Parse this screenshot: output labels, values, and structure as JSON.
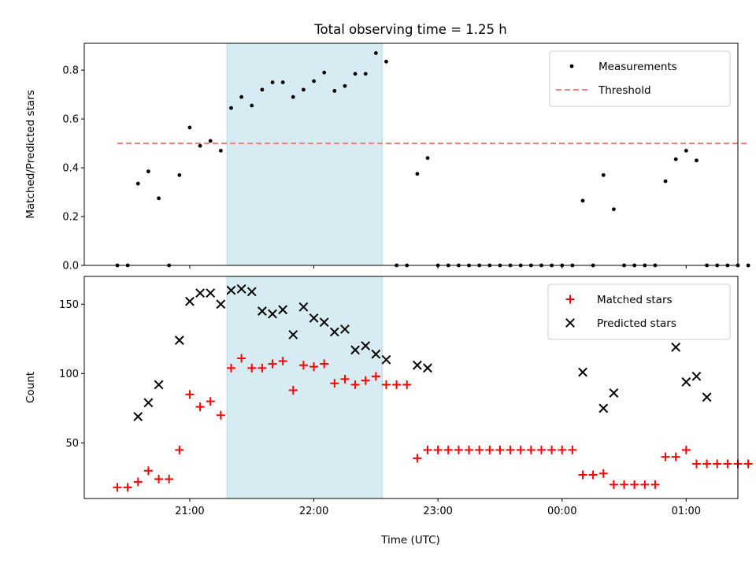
{
  "title": "Total observing time = 1.25 h",
  "xlabel": "Time (UTC)",
  "x_tick_labels": [
    "21:00",
    "22:00",
    "23:00",
    "00:00",
    "01:00"
  ],
  "colors": {
    "measurements": "#000000",
    "threshold": "#ff7f7f",
    "matched": "#ff0000",
    "predicted": "#000000",
    "observing_window": "#add8e6"
  },
  "chart_data": [
    {
      "type": "scatter",
      "ylabel": "Matched/Predicted stars",
      "ylim": [
        0,
        0.91
      ],
      "y_ticks": [
        "0.0",
        "0.2",
        "0.4",
        "0.6",
        "0.8"
      ],
      "x_range": [
        "20:09",
        "01:25"
      ],
      "shaded_interval": [
        "21:18",
        "22:33"
      ],
      "legend_position": "upper right",
      "threshold": {
        "name": "Threshold",
        "value": 0.5,
        "x": [
          "20:25",
          "01:30"
        ],
        "style": "dashed"
      },
      "series": [
        {
          "name": "Measurements",
          "marker": "dot",
          "x": [
            "20:25",
            "20:30",
            "20:35",
            "20:40",
            "20:45",
            "20:50",
            "20:55",
            "21:00",
            "21:05",
            "21:10",
            "21:15",
            "21:20",
            "21:25",
            "21:30",
            "21:35",
            "21:40",
            "21:45",
            "21:50",
            "21:55",
            "22:00",
            "22:05",
            "22:10",
            "22:15",
            "22:20",
            "22:25",
            "22:30",
            "22:35",
            "22:40",
            "22:45",
            "22:50",
            "22:55",
            "23:00",
            "23:05",
            "23:10",
            "23:15",
            "23:20",
            "23:25",
            "23:30",
            "23:35",
            "23:40",
            "23:45",
            "23:50",
            "23:55",
            "00:00",
            "00:05",
            "00:10",
            "00:15",
            "00:20",
            "00:25",
            "00:30",
            "00:35",
            "00:40",
            "00:45",
            "00:50",
            "00:55",
            "01:00",
            "01:05",
            "01:10",
            "01:15",
            "01:20",
            "01:25",
            "01:30"
          ],
          "values": [
            0,
            0,
            0.335,
            0.385,
            0.275,
            0,
            0.37,
            0.565,
            0.49,
            0.51,
            0.47,
            0.645,
            0.69,
            0.655,
            0.72,
            0.75,
            0.75,
            0.69,
            0.72,
            0.755,
            0.79,
            0.715,
            0.735,
            0.785,
            0.785,
            0.87,
            0.835,
            0,
            0,
            0.375,
            0.44,
            0,
            0,
            0,
            0,
            0,
            0,
            0,
            0,
            0,
            0,
            0,
            0,
            0,
            0,
            0.265,
            0,
            0.37,
            0.23,
            0,
            0,
            0,
            0,
            0.345,
            0.435,
            0.47,
            0.43,
            0,
            0,
            0,
            0,
            0
          ]
        }
      ]
    },
    {
      "type": "scatter",
      "ylabel": "Count",
      "ylim": [
        10,
        170
      ],
      "y_ticks": [
        "50",
        "100",
        "150"
      ],
      "x_range": [
        "20:09",
        "01:25"
      ],
      "shaded_interval": [
        "21:18",
        "22:33"
      ],
      "legend_position": "upper right",
      "series": [
        {
          "name": "Matched stars",
          "marker": "plus",
          "x": [
            "20:25",
            "20:30",
            "20:35",
            "20:40",
            "20:45",
            "20:50",
            "20:55",
            "21:00",
            "21:05",
            "21:10",
            "21:15",
            "21:20",
            "21:25",
            "21:30",
            "21:35",
            "21:40",
            "21:45",
            "21:50",
            "21:55",
            "22:00",
            "22:05",
            "22:10",
            "22:15",
            "22:20",
            "22:25",
            "22:30",
            "22:35",
            "22:40",
            "22:45",
            "22:50",
            "22:55",
            "23:00",
            "23:05",
            "23:10",
            "23:15",
            "23:20",
            "23:25",
            "23:30",
            "23:35",
            "23:40",
            "23:45",
            "23:50",
            "23:55",
            "00:00",
            "00:05",
            "00:10",
            "00:15",
            "00:20",
            "00:25",
            "00:30",
            "00:35",
            "00:40",
            "00:45",
            "00:50",
            "00:55",
            "01:00",
            "01:05",
            "01:10",
            "01:15",
            "01:20",
            "01:25",
            "01:30"
          ],
          "values": [
            18,
            18,
            22,
            30,
            24,
            24,
            45,
            85,
            76,
            80,
            70,
            104,
            111,
            104,
            104,
            107,
            109,
            88,
            106,
            105,
            107,
            93,
            96,
            92,
            95,
            98,
            92,
            92,
            92,
            39,
            45,
            45,
            45,
            45,
            45,
            45,
            45,
            45,
            45,
            45,
            45,
            45,
            45,
            45,
            45,
            27,
            27,
            28,
            20,
            20,
            20,
            20,
            20,
            40,
            40,
            45,
            35,
            35,
            35,
            35,
            35,
            35
          ]
        },
        {
          "name": "Predicted stars",
          "marker": "x",
          "x": [
            "20:35",
            "20:40",
            "20:45",
            "20:55",
            "21:00",
            "21:05",
            "21:10",
            "21:15",
            "21:20",
            "21:25",
            "21:30",
            "21:35",
            "21:40",
            "21:45",
            "21:50",
            "21:55",
            "22:00",
            "22:05",
            "22:10",
            "22:15",
            "22:20",
            "22:25",
            "22:30",
            "22:35",
            "22:50",
            "22:55",
            "00:10",
            "00:20",
            "00:25",
            "00:55",
            "01:00",
            "01:05",
            "01:10"
          ],
          "values": [
            69,
            79,
            92,
            124,
            152,
            158,
            158,
            150,
            160,
            161,
            159,
            145,
            143,
            146,
            128,
            148,
            140,
            137,
            130,
            132,
            117,
            120,
            114,
            110,
            106,
            104,
            101,
            75,
            86,
            119,
            94,
            98,
            83
          ]
        }
      ]
    }
  ]
}
